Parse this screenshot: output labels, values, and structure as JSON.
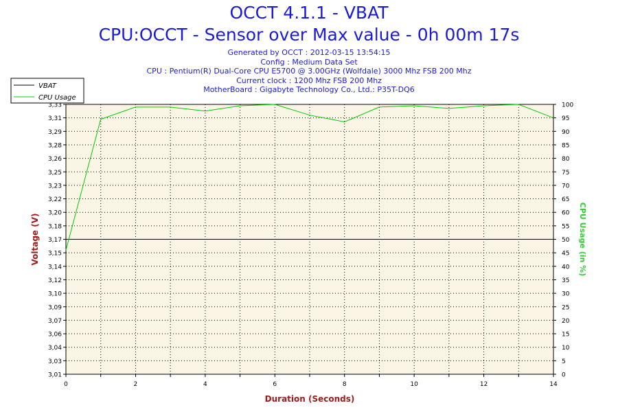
{
  "header": {
    "title": "OCCT 4.1.1 - VBAT",
    "subtitle": "CPU:OCCT - Sensor over Max value - 0h 00m 17s",
    "info_lines": [
      "Generated by OCCT : 2012-03-15 13:54:15",
      "Config : Medium Data Set",
      "CPU : Pentium(R) Dual-Core CPU E5700 @ 3.00GHz (Wolfdale) 3000 Mhz FSB 200 Mhz",
      "Current clock : 1200 Mhz FSB 200 Mhz",
      "MotherBoard : Gigabyte Technology Co., Ltd.: P35T-DQ6"
    ]
  },
  "chart_data": {
    "type": "line",
    "xlabel": "Duration (Seconds)",
    "ylabel_left": "Voltage (V)",
    "ylabel_right": "CPU Usage (in %)",
    "xlim": [
      0,
      14
    ],
    "x_ticks": [
      0,
      2,
      4,
      6,
      8,
      10,
      12,
      14
    ],
    "ylim_left": [
      3.01,
      3.33
    ],
    "y_ticks_left": [
      "3,01",
      "3,03",
      "3,04",
      "3,06",
      "3,07",
      "3,09",
      "3,10",
      "3,12",
      "3,14",
      "3,15",
      "3,17",
      "3,18",
      "3,20",
      "3,22",
      "3,23",
      "3,25",
      "3,26",
      "3,28",
      "3,29",
      "3,31",
      "3,33"
    ],
    "ylim_right": [
      0,
      100
    ],
    "y_ticks_right": [
      0,
      5,
      10,
      15,
      20,
      25,
      30,
      35,
      40,
      45,
      50,
      55,
      60,
      65,
      70,
      75,
      80,
      85,
      90,
      95,
      100
    ],
    "grid": true,
    "legend_position": "top-left",
    "series": [
      {
        "name": "VBAT",
        "axis": "left",
        "color": "#000000",
        "x": [
          0,
          1,
          2,
          3,
          4,
          5,
          6,
          7,
          8,
          9,
          10,
          11,
          12,
          13,
          14
        ],
        "values": [
          3.17,
          3.17,
          3.17,
          3.17,
          3.17,
          3.17,
          3.17,
          3.17,
          3.17,
          3.17,
          3.17,
          3.17,
          3.17,
          3.17,
          3.17
        ]
      },
      {
        "name": "CPU Usage",
        "axis": "right",
        "color": "#00cc00",
        "x": [
          0,
          1,
          2,
          3,
          4,
          5,
          6,
          7,
          8,
          9,
          10,
          11,
          12,
          13,
          14
        ],
        "values": [
          46,
          94.5,
          99,
          99,
          97.5,
          99.5,
          100,
          96,
          93.5,
          99,
          99.5,
          98.5,
          99.5,
          100,
          95
        ]
      }
    ],
    "colors": {
      "plot_bg": "#fbf5e6",
      "grid": "#000000",
      "title": "#1a1adb",
      "axis_label_left": "#a01c1c",
      "axis_label_right": "#33cc33",
      "axis_label_x": "#a01c1c"
    }
  }
}
